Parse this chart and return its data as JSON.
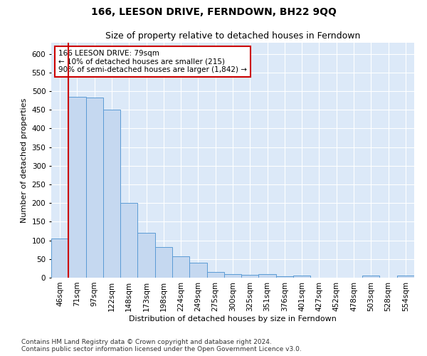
{
  "title": "166, LEESON DRIVE, FERNDOWN, BH22 9QQ",
  "subtitle": "Size of property relative to detached houses in Ferndown",
  "xlabel": "Distribution of detached houses by size in Ferndown",
  "ylabel": "Number of detached properties",
  "categories": [
    "46sqm",
    "71sqm",
    "97sqm",
    "122sqm",
    "148sqm",
    "173sqm",
    "198sqm",
    "224sqm",
    "249sqm",
    "275sqm",
    "300sqm",
    "325sqm",
    "351sqm",
    "376sqm",
    "401sqm",
    "427sqm",
    "452sqm",
    "478sqm",
    "503sqm",
    "528sqm",
    "554sqm"
  ],
  "values": [
    105,
    485,
    483,
    450,
    200,
    120,
    82,
    57,
    40,
    15,
    10,
    7,
    10,
    3,
    5,
    0,
    0,
    0,
    5,
    0,
    5
  ],
  "bar_color": "#c5d8f0",
  "bar_edge_color": "#5b9bd5",
  "vline_x": 0.5,
  "vline_color": "#cc0000",
  "annotation_text": "166 LEESON DRIVE: 79sqm\n← 10% of detached houses are smaller (215)\n90% of semi-detached houses are larger (1,842) →",
  "annotation_box_color": "#ffffff",
  "annotation_box_edge_color": "#cc0000",
  "ylim": [
    0,
    630
  ],
  "yticks": [
    0,
    50,
    100,
    150,
    200,
    250,
    300,
    350,
    400,
    450,
    500,
    550,
    600
  ],
  "footer": "Contains HM Land Registry data © Crown copyright and database right 2024.\nContains public sector information licensed under the Open Government Licence v3.0.",
  "background_color": "#dce9f8",
  "grid_color": "#ffffff",
  "title_fontsize": 10,
  "subtitle_fontsize": 9,
  "label_fontsize": 8,
  "tick_fontsize": 7.5,
  "footer_fontsize": 6.5,
  "annotation_fontsize": 7.5
}
